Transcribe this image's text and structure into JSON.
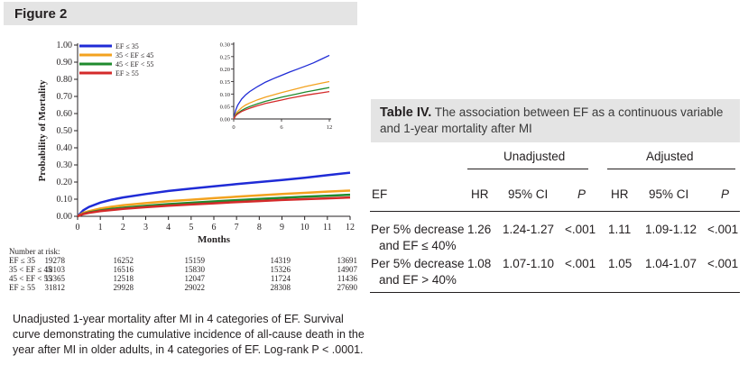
{
  "figure": {
    "label": "Figure 2",
    "caption": "Unadjusted 1-year mortality after MI in 4 categories of EF. Survival curve demonstrating the cumulative incidence of all-cause death in the year after MI in older adults, in 4 categories of EF. Log-rank P < .0001."
  },
  "chart_data": [
    {
      "type": "line",
      "title": "",
      "xlabel": "Months",
      "ylabel": "Probability of Mortality",
      "xlim": [
        0,
        12
      ],
      "ylim": [
        0,
        1
      ],
      "x_ticks": [
        "0",
        "1",
        "2",
        "3",
        "4",
        "5",
        "6",
        "7",
        "8",
        "9",
        "10",
        "11",
        "12"
      ],
      "y_ticks": [
        "0.00",
        "0.10",
        "0.20",
        "0.30",
        "0.40",
        "0.50",
        "0.60",
        "0.70",
        "0.80",
        "0.90",
        "1.00"
      ],
      "legend": [
        "EF ≤ 35",
        "35 < EF ≤ 45",
        "45 < EF < 55",
        "EF ≥ 55"
      ],
      "x": [
        0,
        0.25,
        0.5,
        1,
        1.5,
        2,
        3,
        4,
        5,
        6,
        7,
        8,
        9,
        10,
        11,
        12
      ],
      "series": [
        {
          "name": "EF ≤ 35",
          "color": "#1f2bd6",
          "values": [
            0,
            0.035,
            0.055,
            0.08,
            0.097,
            0.11,
            0.13,
            0.148,
            0.162,
            0.175,
            0.188,
            0.2,
            0.212,
            0.225,
            0.24,
            0.255
          ]
        },
        {
          "name": "35 < EF ≤ 45",
          "color": "#f3a21f",
          "values": [
            0,
            0.02,
            0.03,
            0.045,
            0.056,
            0.064,
            0.077,
            0.088,
            0.097,
            0.106,
            0.114,
            0.122,
            0.13,
            0.137,
            0.144,
            0.15
          ]
        },
        {
          "name": "45 < EF < 55",
          "color": "#1f8a2e",
          "values": [
            0,
            0.015,
            0.023,
            0.034,
            0.043,
            0.05,
            0.061,
            0.071,
            0.079,
            0.087,
            0.094,
            0.101,
            0.108,
            0.114,
            0.12,
            0.126
          ]
        },
        {
          "name": "EF ≥ 55",
          "color": "#d42a2a",
          "values": [
            0,
            0.013,
            0.02,
            0.03,
            0.037,
            0.043,
            0.053,
            0.062,
            0.069,
            0.076,
            0.083,
            0.089,
            0.095,
            0.1,
            0.105,
            0.11
          ]
        }
      ]
    },
    {
      "type": "line",
      "title": "inset",
      "xlim": [
        0,
        12
      ],
      "ylim": [
        0,
        0.3
      ],
      "x_ticks": [
        "0",
        "6",
        "12"
      ],
      "y_ticks": [
        "0.00",
        "0.05",
        "0.10",
        "0.15",
        "0.20",
        "0.25",
        "0.30"
      ],
      "x": [
        0,
        0.25,
        0.5,
        1,
        1.5,
        2,
        3,
        4,
        5,
        6,
        7,
        8,
        9,
        10,
        11,
        12
      ],
      "series": [
        {
          "name": "EF ≤ 35",
          "color": "#1f2bd6",
          "values": [
            0,
            0.035,
            0.055,
            0.08,
            0.097,
            0.11,
            0.13,
            0.148,
            0.162,
            0.175,
            0.188,
            0.2,
            0.212,
            0.225,
            0.24,
            0.255
          ]
        },
        {
          "name": "35 < EF ≤ 45",
          "color": "#f3a21f",
          "values": [
            0,
            0.02,
            0.03,
            0.045,
            0.056,
            0.064,
            0.077,
            0.088,
            0.097,
            0.106,
            0.114,
            0.122,
            0.13,
            0.137,
            0.144,
            0.15
          ]
        },
        {
          "name": "45 < EF < 55",
          "color": "#1f8a2e",
          "values": [
            0,
            0.015,
            0.023,
            0.034,
            0.043,
            0.05,
            0.061,
            0.071,
            0.079,
            0.087,
            0.094,
            0.101,
            0.108,
            0.114,
            0.12,
            0.126
          ]
        },
        {
          "name": "EF ≥ 55",
          "color": "#d42a2a",
          "values": [
            0,
            0.013,
            0.02,
            0.03,
            0.037,
            0.043,
            0.053,
            0.062,
            0.069,
            0.076,
            0.083,
            0.089,
            0.095,
            0.1,
            0.105,
            0.11
          ]
        }
      ]
    }
  ],
  "risk": {
    "title": "Number at risk:",
    "rows": [
      {
        "label": "EF ≤ 35",
        "values": [
          "19278",
          "16252",
          "15159",
          "14319",
          "13691"
        ]
      },
      {
        "label": "35 < EF ≤ 45",
        "values": [
          "18103",
          "16516",
          "15830",
          "15326",
          "14907"
        ]
      },
      {
        "label": "45 < EF < 55",
        "values": [
          "13365",
          "12518",
          "12047",
          "11724",
          "11436"
        ]
      },
      {
        "label": "EF ≥ 55",
        "values": [
          "31812",
          "29928",
          "29022",
          "28308",
          "27690"
        ]
      }
    ]
  },
  "table": {
    "label": "Table IV.",
    "title": "The association between EF as a continuous variable and 1-year mortality after MI",
    "group_unadjusted": "Unadjusted",
    "group_adjusted": "Adjusted",
    "col_ef": "EF",
    "col_hr": "HR",
    "col_ci": "95% CI",
    "col_p": "P",
    "rows": [
      {
        "line1": "Per 5% decrease",
        "line2": "and EF ≤ 40%",
        "hr1": "1.26",
        "ci1": "1.24-1.27",
        "p1": "<.001",
        "hr2": "1.11",
        "ci2": "1.09-1.12",
        "p2": "<.001"
      },
      {
        "line1": "Per 5% decrease",
        "line2": "and EF > 40%",
        "hr1": "1.08",
        "ci1": "1.07-1.10",
        "p1": "<.001",
        "hr2": "1.05",
        "ci2": "1.04-1.07",
        "p2": "<.001"
      }
    ]
  }
}
